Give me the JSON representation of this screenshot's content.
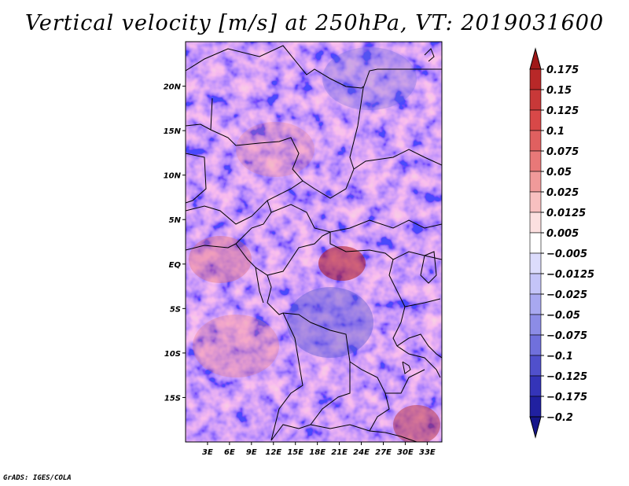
{
  "title": "Vertical velocity [m/s] at 250hPa, VT: 2019031600",
  "credit": "GrADS: IGES/COLA",
  "map": {
    "lat_range": [
      -20,
      25
    ],
    "lon_range": [
      0,
      35
    ],
    "lat_ticks": [
      {
        "value": 20,
        "label": "20N"
      },
      {
        "value": 15,
        "label": "15N"
      },
      {
        "value": 10,
        "label": "10N"
      },
      {
        "value": 5,
        "label": "5N"
      },
      {
        "value": 0,
        "label": "EQ"
      },
      {
        "value": -5,
        "label": "5S"
      },
      {
        "value": -10,
        "label": "10S"
      },
      {
        "value": -15,
        "label": "15S"
      }
    ],
    "lon_ticks": [
      {
        "value": 3,
        "label": "3E"
      },
      {
        "value": 6,
        "label": "6E"
      },
      {
        "value": 9,
        "label": "9E"
      },
      {
        "value": 12,
        "label": "12E"
      },
      {
        "value": 15,
        "label": "15E"
      },
      {
        "value": 18,
        "label": "18E"
      },
      {
        "value": 21,
        "label": "21E"
      },
      {
        "value": 24,
        "label": "24E"
      },
      {
        "value": 27,
        "label": "27E"
      },
      {
        "value": 30,
        "label": "30E"
      },
      {
        "value": 33,
        "label": "33E"
      }
    ]
  },
  "colorbar": {
    "levels": [
      "0.175",
      "0.15",
      "0.125",
      "0.1",
      "0.075",
      "0.05",
      "0.025",
      "0.0125",
      "0.005",
      "−0.005",
      "−0.0125",
      "−0.025",
      "−0.05",
      "−0.075",
      "−0.1",
      "−0.125",
      "−0.175",
      "−0.2"
    ],
    "colors": [
      "#a01818",
      "#b82828",
      "#c83838",
      "#d84848",
      "#e06060",
      "#e87878",
      "#f09a9a",
      "#f8c0c0",
      "#fce0e0",
      "#ffffff",
      "#dcdcfc",
      "#c4c4f8",
      "#a8a8f0",
      "#8c8ce6",
      "#7070dc",
      "#5050cc",
      "#3434b8",
      "#2020a0",
      "#16168a"
    ]
  }
}
